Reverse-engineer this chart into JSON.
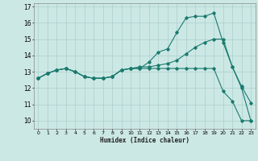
{
  "xlabel": "Humidex (Indice chaleur)",
  "x_ticks": [
    0,
    1,
    2,
    3,
    4,
    5,
    6,
    7,
    8,
    9,
    10,
    11,
    12,
    13,
    14,
    15,
    16,
    17,
    18,
    19,
    20,
    21,
    22,
    23
  ],
  "xlim": [
    -0.5,
    23.5
  ],
  "ylim": [
    9.5,
    17.2
  ],
  "y_ticks": [
    10,
    11,
    12,
    13,
    14,
    15,
    16,
    17
  ],
  "bg_color": "#cce8e5",
  "grid_color": "#aacfcc",
  "line_color": "#1a7a6e",
  "line1_y": [
    12.6,
    12.9,
    13.1,
    13.2,
    13.0,
    12.7,
    12.6,
    12.6,
    12.7,
    13.1,
    13.2,
    13.2,
    13.6,
    14.2,
    14.4,
    15.4,
    16.3,
    16.4,
    16.4,
    16.6,
    14.8,
    13.3,
    12.1,
    11.1
  ],
  "line2_y": [
    12.6,
    12.9,
    13.1,
    13.2,
    13.0,
    12.7,
    12.6,
    12.6,
    12.7,
    13.1,
    13.2,
    13.2,
    13.2,
    13.2,
    13.2,
    13.2,
    13.2,
    13.2,
    13.2,
    13.2,
    11.8,
    11.2,
    10.0,
    10.0
  ],
  "line3_y": [
    12.6,
    12.9,
    13.1,
    13.2,
    13.0,
    12.7,
    12.6,
    12.6,
    12.7,
    13.1,
    13.2,
    13.3,
    13.3,
    13.4,
    13.5,
    13.7,
    14.1,
    14.5,
    14.8,
    15.0,
    15.0,
    13.3,
    12.0,
    10.0
  ]
}
